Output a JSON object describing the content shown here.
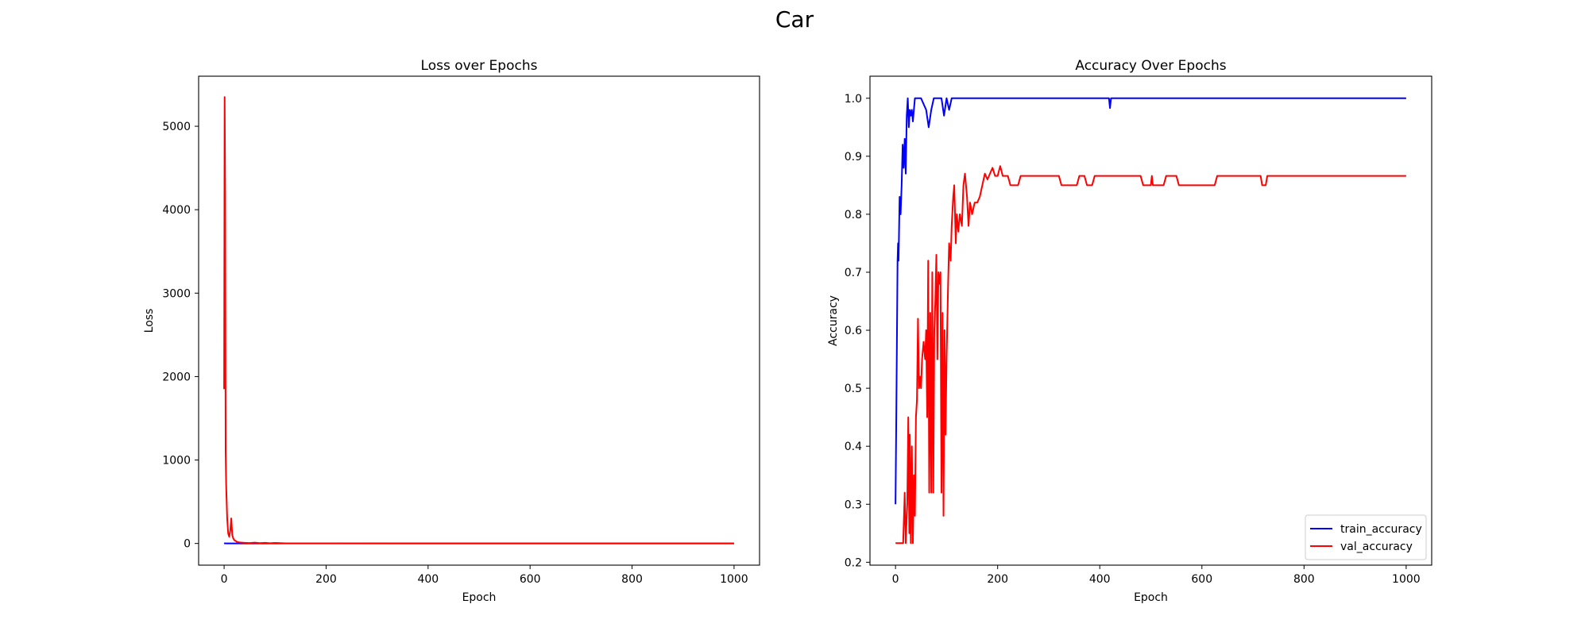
{
  "figure": {
    "title": "Car"
  },
  "chart_data": [
    {
      "type": "line",
      "title": "Loss over Epochs",
      "xlabel": "Epoch",
      "ylabel": "Loss",
      "xlim": [
        -50,
        1050
      ],
      "ylim": [
        -260,
        5600
      ],
      "xticks": [
        0,
        200,
        400,
        600,
        800,
        1000
      ],
      "yticks": [
        0,
        1000,
        2000,
        3000,
        4000,
        5000
      ],
      "grid": false,
      "legend": null,
      "series": [
        {
          "color": "#0000ff",
          "points": [
            [
              0,
              1.1
            ],
            [
              5,
              0.7
            ],
            [
              10,
              0.5
            ],
            [
              20,
              0.3
            ],
            [
              40,
              0.1
            ],
            [
              100,
              0.02
            ],
            [
              1000,
              0.0
            ]
          ]
        },
        {
          "color": "#ff0000",
          "points": [
            [
              0,
              1850
            ],
            [
              1,
              5350
            ],
            [
              2,
              4200
            ],
            [
              3,
              1100
            ],
            [
              4,
              700
            ],
            [
              6,
              300
            ],
            [
              8,
              120
            ],
            [
              10,
              80
            ],
            [
              12,
              150
            ],
            [
              14,
              300
            ],
            [
              16,
              100
            ],
            [
              18,
              60
            ],
            [
              20,
              40
            ],
            [
              25,
              20
            ],
            [
              30,
              12
            ],
            [
              40,
              8
            ],
            [
              50,
              5
            ],
            [
              60,
              10
            ],
            [
              70,
              4
            ],
            [
              80,
              8
            ],
            [
              90,
              3
            ],
            [
              100,
              6
            ],
            [
              120,
              2
            ],
            [
              200,
              1
            ],
            [
              400,
              0.5
            ],
            [
              600,
              0.4
            ],
            [
              800,
              0.3
            ],
            [
              1000,
              0.3
            ]
          ]
        }
      ]
    },
    {
      "type": "line",
      "title": "Accuracy Over Epochs",
      "xlabel": "Epoch",
      "ylabel": "Accuracy",
      "xlim": [
        -50,
        1050
      ],
      "ylim": [
        0.195,
        1.038
      ],
      "xticks": [
        0,
        200,
        400,
        600,
        800,
        1000
      ],
      "yticks": [
        0.2,
        0.3,
        0.4,
        0.5,
        0.6,
        0.7,
        0.8,
        0.9,
        1.0
      ],
      "grid": false,
      "legend": "lower-right",
      "series": [
        {
          "name": "train_accuracy",
          "color": "#0000ff",
          "points": [
            [
              0,
              0.3
            ],
            [
              2,
              0.5
            ],
            [
              4,
              0.72
            ],
            [
              5,
              0.75
            ],
            [
              6,
              0.72
            ],
            [
              8,
              0.83
            ],
            [
              10,
              0.8
            ],
            [
              12,
              0.85
            ],
            [
              14,
              0.92
            ],
            [
              16,
              0.88
            ],
            [
              18,
              0.93
            ],
            [
              20,
              0.87
            ],
            [
              22,
              0.97
            ],
            [
              24,
              1.0
            ],
            [
              26,
              0.95
            ],
            [
              28,
              0.98
            ],
            [
              30,
              0.97
            ],
            [
              32,
              0.98
            ],
            [
              34,
              0.96
            ],
            [
              36,
              0.98
            ],
            [
              38,
              1.0
            ],
            [
              50,
              1.0
            ],
            [
              60,
              0.98
            ],
            [
              65,
              0.95
            ],
            [
              70,
              0.98
            ],
            [
              75,
              1.0
            ],
            [
              90,
              1.0
            ],
            [
              95,
              0.97
            ],
            [
              100,
              1.0
            ],
            [
              105,
              0.98
            ],
            [
              110,
              1.0
            ],
            [
              418,
              1.0
            ],
            [
              420,
              0.983
            ],
            [
              422,
              1.0
            ],
            [
              1000,
              1.0
            ]
          ]
        },
        {
          "name": "val_accuracy",
          "color": "#ff0000",
          "points": [
            [
              0,
              0.233
            ],
            [
              15,
              0.233
            ],
            [
              18,
              0.32
            ],
            [
              20,
              0.233
            ],
            [
              23,
              0.3
            ],
            [
              25,
              0.45
            ],
            [
              27,
              0.25
            ],
            [
              28,
              0.42
            ],
            [
              30,
              0.233
            ],
            [
              32,
              0.4
            ],
            [
              34,
              0.233
            ],
            [
              36,
              0.35
            ],
            [
              38,
              0.28
            ],
            [
              40,
              0.45
            ],
            [
              42,
              0.48
            ],
            [
              44,
              0.62
            ],
            [
              46,
              0.5
            ],
            [
              48,
              0.52
            ],
            [
              50,
              0.5
            ],
            [
              52,
              0.55
            ],
            [
              55,
              0.58
            ],
            [
              58,
              0.55
            ],
            [
              60,
              0.6
            ],
            [
              62,
              0.45
            ],
            [
              64,
              0.72
            ],
            [
              66,
              0.32
            ],
            [
              68,
              0.63
            ],
            [
              70,
              0.32
            ],
            [
              72,
              0.7
            ],
            [
              74,
              0.32
            ],
            [
              76,
              0.6
            ],
            [
              78,
              0.65
            ],
            [
              80,
              0.73
            ],
            [
              82,
              0.55
            ],
            [
              84,
              0.7
            ],
            [
              86,
              0.68
            ],
            [
              88,
              0.7
            ],
            [
              90,
              0.32
            ],
            [
              92,
              0.63
            ],
            [
              94,
              0.28
            ],
            [
              96,
              0.6
            ],
            [
              98,
              0.42
            ],
            [
              100,
              0.55
            ],
            [
              103,
              0.68
            ],
            [
              105,
              0.75
            ],
            [
              108,
              0.72
            ],
            [
              110,
              0.78
            ],
            [
              113,
              0.83
            ],
            [
              115,
              0.85
            ],
            [
              118,
              0.75
            ],
            [
              120,
              0.8
            ],
            [
              123,
              0.77
            ],
            [
              126,
              0.8
            ],
            [
              130,
              0.78
            ],
            [
              133,
              0.85
            ],
            [
              136,
              0.87
            ],
            [
              140,
              0.83
            ],
            [
              143,
              0.78
            ],
            [
              146,
              0.82
            ],
            [
              150,
              0.8
            ],
            [
              155,
              0.82
            ],
            [
              160,
              0.82
            ],
            [
              165,
              0.83
            ],
            [
              170,
              0.85
            ],
            [
              175,
              0.87
            ],
            [
              180,
              0.86
            ],
            [
              185,
              0.87
            ],
            [
              190,
              0.88
            ],
            [
              195,
              0.866
            ],
            [
              200,
              0.866
            ],
            [
              205,
              0.883
            ],
            [
              210,
              0.866
            ],
            [
              220,
              0.866
            ],
            [
              225,
              0.85
            ],
            [
              240,
              0.85
            ],
            [
              245,
              0.866
            ],
            [
              320,
              0.866
            ],
            [
              325,
              0.85
            ],
            [
              355,
              0.85
            ],
            [
              360,
              0.866
            ],
            [
              370,
              0.866
            ],
            [
              375,
              0.85
            ],
            [
              385,
              0.85
            ],
            [
              390,
              0.866
            ],
            [
              480,
              0.866
            ],
            [
              485,
              0.85
            ],
            [
              500,
              0.85
            ],
            [
              502,
              0.866
            ],
            [
              504,
              0.85
            ],
            [
              525,
              0.85
            ],
            [
              530,
              0.866
            ],
            [
              550,
              0.866
            ],
            [
              555,
              0.85
            ],
            [
              625,
              0.85
            ],
            [
              630,
              0.866
            ],
            [
              715,
              0.866
            ],
            [
              718,
              0.85
            ],
            [
              725,
              0.85
            ],
            [
              728,
              0.866
            ],
            [
              1000,
              0.866
            ]
          ]
        }
      ]
    }
  ]
}
